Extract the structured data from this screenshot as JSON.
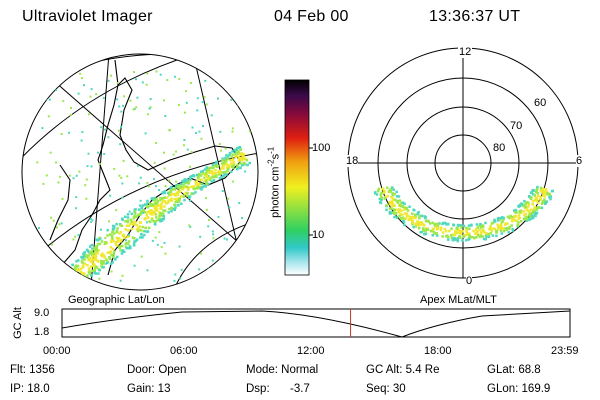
{
  "header": {
    "title": "Ultraviolet Imager",
    "date": "04 Feb 00",
    "time": "13:36:37 UT"
  },
  "colorbar": {
    "label": "photon cm",
    "label_sup1": "-2",
    "label_mid": "s",
    "label_sup2": "-1",
    "tick_high": "100",
    "tick_low": "10"
  },
  "geo_panel": {
    "caption": "Geographic Lat/Lon"
  },
  "polar_panel": {
    "caption": "Apex MLat/MLT",
    "mlt_top": "12",
    "mlt_left": "18",
    "mlt_right": "6",
    "mlt_bottom": "0",
    "lat_60": "60",
    "lat_70": "70",
    "lat_80": "80"
  },
  "altitude_plot": {
    "ylabel": "GC Alt",
    "y_top": "9.0",
    "y_bottom": "1.8",
    "x_ticks": [
      "00:00",
      "06:00",
      "12:00",
      "18:00",
      "23:59"
    ],
    "marker_fraction": 0.568
  },
  "info": {
    "row1": {
      "flt": "Flt: 1356",
      "door": "Door: Open",
      "mode": "Mode: Normal",
      "gcalt": "GC Alt: 5.4 Re",
      "glat": "GLat: 68.8"
    },
    "row2": {
      "ip": "IP: 18.0",
      "gain": "Gain: 13",
      "dsp_label": "Dsp:",
      "dsp_value": "-3.7",
      "seq": "Seq: 30",
      "glon": "GLon: 169.9"
    }
  },
  "colors": {
    "aurora_low": "#4fd8c0",
    "aurora_mid": "#9be84a",
    "aurora_high": "#f0e830",
    "marker": "#c0392b"
  }
}
